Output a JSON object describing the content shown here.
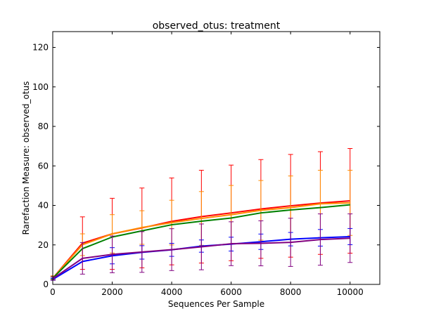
{
  "chart_data": {
    "type": "line",
    "title": "observed_otus: treatment",
    "xlabel": "Sequences Per Sample",
    "ylabel": "Rarefaction Measure: observed_otus",
    "xlim": [
      0,
      11000
    ],
    "ylim": [
      0,
      128
    ],
    "xticks": [
      0,
      2000,
      4000,
      6000,
      8000,
      10000
    ],
    "yticks": [
      0,
      20,
      40,
      60,
      80,
      100,
      120
    ],
    "x": [
      10,
      1000,
      2000,
      3000,
      4000,
      5000,
      6000,
      7000,
      8000,
      9000,
      10000
    ],
    "series": [
      {
        "name": "red",
        "color": "#ff0000",
        "values": [
          3.3,
          20.9,
          25.6,
          28.6,
          31.9,
          34.3,
          36.2,
          38.2,
          39.8,
          41.2,
          42.3
        ],
        "errors": [
          1.0,
          13.3,
          18.0,
          20.2,
          22.0,
          23.5,
          24.2,
          25.0,
          26.0,
          26.0,
          26.5
        ]
      },
      {
        "name": "orange",
        "color": "#ff8c00",
        "values": [
          3.3,
          20.1,
          25.6,
          28.8,
          31.3,
          33.4,
          35.3,
          37.5,
          38.9,
          40.8,
          41.3
        ],
        "errors": [
          1.0,
          5.5,
          9.7,
          8.5,
          11.3,
          13.6,
          14.8,
          15.1,
          16.0,
          17.0,
          16.5
        ]
      },
      {
        "name": "green",
        "color": "#008000",
        "values": [
          3.3,
          18.1,
          24.0,
          27.1,
          30.2,
          32.0,
          33.6,
          36.2,
          37.7,
          38.9,
          40.3
        ],
        "errors": [
          0.5,
          0.0,
          0.0,
          0.0,
          0.0,
          0.0,
          0.0,
          0.0,
          0.0,
          0.0,
          0.0
        ]
      },
      {
        "name": "blue",
        "color": "#0000ff",
        "values": [
          2.6,
          11.6,
          14.5,
          16.2,
          17.5,
          19.4,
          20.4,
          21.6,
          22.9,
          23.6,
          24.2
        ],
        "errors": [
          0.5,
          0.0,
          4.1,
          3.4,
          3.3,
          3.1,
          3.5,
          3.9,
          3.4,
          4.2,
          4.1
        ]
      },
      {
        "name": "purple",
        "color": "#800080",
        "values": [
          3.0,
          13.2,
          15.2,
          16.4,
          17.6,
          19.0,
          20.6,
          20.8,
          21.3,
          22.7,
          23.4
        ],
        "errors": [
          0.8,
          8.0,
          9.3,
          10.3,
          10.6,
          11.6,
          11.1,
          11.4,
          12.2,
          13.0,
          12.3
        ]
      }
    ]
  }
}
